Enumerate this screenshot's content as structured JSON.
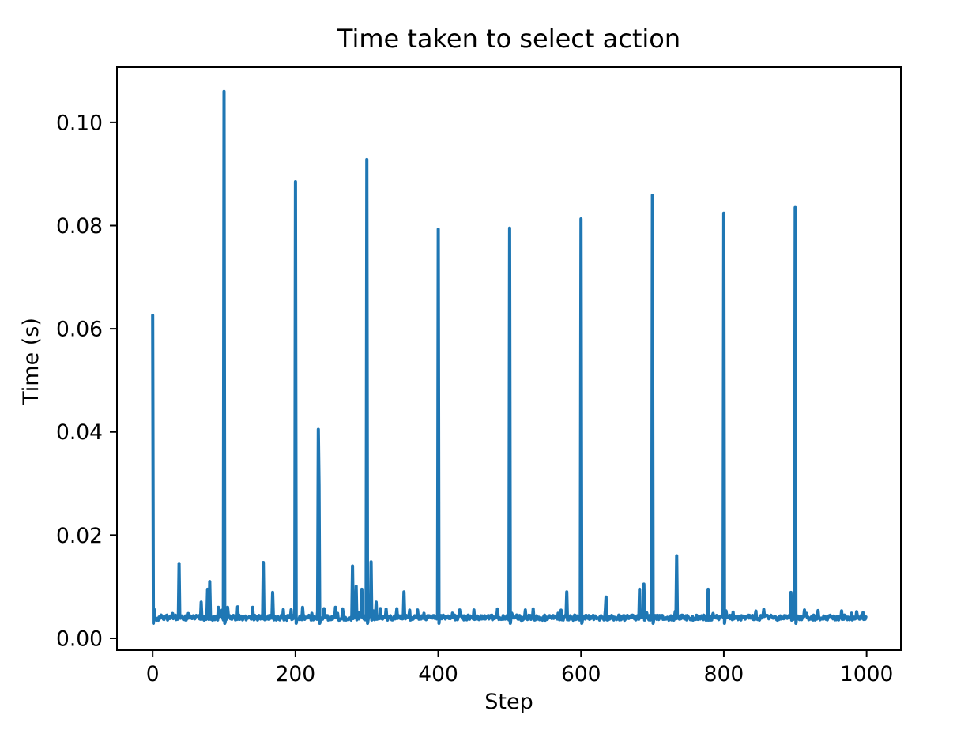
{
  "figure": {
    "background": "#ffffff",
    "text_color": "#000000"
  },
  "chart_data": {
    "type": "line",
    "title": "Time taken to select action",
    "xlabel": "Step",
    "ylabel": "Time (s)",
    "legend": null,
    "grid": false,
    "line_color": "#1f77b4",
    "xlim": [
      -50,
      1048
    ],
    "ylim": [
      -0.0023,
      0.1107
    ],
    "x_ticks": {
      "values": [
        0,
        200,
        400,
        600,
        800,
        1000
      ],
      "labels": [
        "0",
        "200",
        "400",
        "600",
        "800",
        "1000"
      ]
    },
    "y_ticks": {
      "values": [
        0.0,
        0.02,
        0.04,
        0.06,
        0.08,
        0.1
      ],
      "labels": [
        "0.00",
        "0.02",
        "0.04",
        "0.06",
        "0.08",
        "0.10"
      ]
    },
    "n_points": 1000,
    "baseline": 0.004,
    "noise_amplitude": 0.0005,
    "post_spike_dip": 0.0029,
    "spikes": [
      [
        0,
        0.0626
      ],
      [
        37,
        0.0145
      ],
      [
        68,
        0.007
      ],
      [
        77,
        0.0095
      ],
      [
        80,
        0.011
      ],
      [
        92,
        0.006
      ],
      [
        100,
        0.106
      ],
      [
        105,
        0.006
      ],
      [
        119,
        0.0061
      ],
      [
        140,
        0.006
      ],
      [
        155,
        0.0147
      ],
      [
        168,
        0.0089
      ],
      [
        200,
        0.0885
      ],
      [
        210,
        0.006
      ],
      [
        232,
        0.0405
      ],
      [
        233,
        0.0297
      ],
      [
        256,
        0.006
      ],
      [
        280,
        0.014
      ],
      [
        285,
        0.0101
      ],
      [
        293,
        0.0095
      ],
      [
        300,
        0.0928
      ],
      [
        306,
        0.0148
      ],
      [
        313,
        0.007
      ],
      [
        352,
        0.009
      ],
      [
        371,
        0.0055
      ],
      [
        400,
        0.0793
      ],
      [
        430,
        0.0055
      ],
      [
        450,
        0.0055
      ],
      [
        500,
        0.0795
      ],
      [
        522,
        0.0055
      ],
      [
        580,
        0.009
      ],
      [
        600,
        0.0813
      ],
      [
        635,
        0.008
      ],
      [
        682,
        0.0095
      ],
      [
        688,
        0.0105
      ],
      [
        700,
        0.0859
      ],
      [
        734,
        0.016
      ],
      [
        778,
        0.0095
      ],
      [
        800,
        0.0824
      ],
      [
        894,
        0.0089
      ],
      [
        900,
        0.0835
      ],
      [
        913,
        0.0055
      ]
    ]
  }
}
